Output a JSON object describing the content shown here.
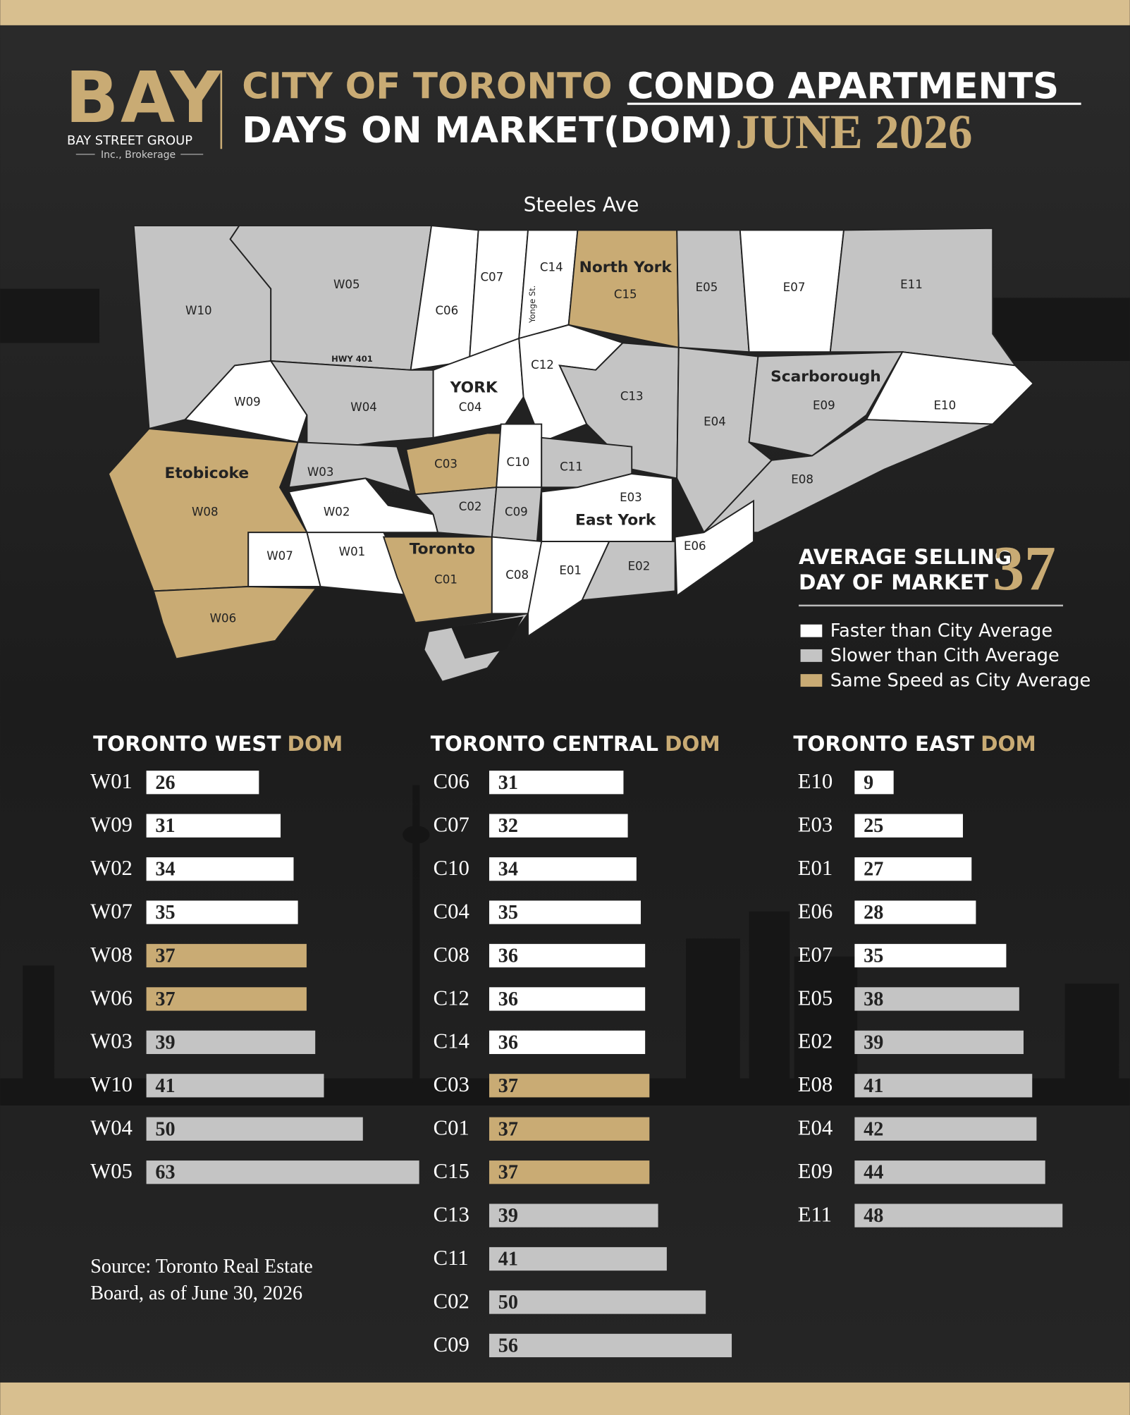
{
  "header": {
    "logo": "BAY",
    "company": "BAY STREET GROUP",
    "company_sub": "Inc., Brokerage",
    "title_line1_a": "CITY OF TORONTO",
    "title_line1_b": "CONDO APARTMENTS",
    "title_line2": "DAYS ON MARKET(DOM)",
    "date": "JUNE 2026"
  },
  "map": {
    "street_labels": [
      "Steeles Ave",
      "HWY 401",
      "Yonge St."
    ],
    "area_labels": [
      "North York",
      "YORK",
      "Scarborough",
      "Etobicoke",
      "East York",
      "Toronto"
    ],
    "regions": [
      {
        "code": "W10",
        "color": "#c4c4c4"
      },
      {
        "code": "W05",
        "color": "#c4c4c4"
      },
      {
        "code": "C06",
        "color": "#ffffff"
      },
      {
        "code": "C07",
        "color": "#ffffff"
      },
      {
        "code": "C14",
        "color": "#ffffff"
      },
      {
        "code": "C15",
        "color": "#c9ab74"
      },
      {
        "code": "E05",
        "color": "#c4c4c4"
      },
      {
        "code": "E07",
        "color": "#ffffff"
      },
      {
        "code": "E11",
        "color": "#c4c4c4"
      },
      {
        "code": "W09",
        "color": "#ffffff"
      },
      {
        "code": "W04",
        "color": "#c4c4c4"
      },
      {
        "code": "C04",
        "color": "#ffffff"
      },
      {
        "code": "C12",
        "color": "#ffffff"
      },
      {
        "code": "C13",
        "color": "#c4c4c4"
      },
      {
        "code": "E04",
        "color": "#c4c4c4"
      },
      {
        "code": "E09",
        "color": "#c4c4c4"
      },
      {
        "code": "E10",
        "color": "#ffffff"
      },
      {
        "code": "E08",
        "color": "#c4c4c4"
      },
      {
        "code": "W08",
        "color": "#c9ab74"
      },
      {
        "code": "W03",
        "color": "#c4c4c4"
      },
      {
        "code": "C03",
        "color": "#c9ab74"
      },
      {
        "code": "C10",
        "color": "#ffffff"
      },
      {
        "code": "C11",
        "color": "#c4c4c4"
      },
      {
        "code": "W02",
        "color": "#ffffff"
      },
      {
        "code": "C02",
        "color": "#c4c4c4"
      },
      {
        "code": "C09",
        "color": "#c4c4c4"
      },
      {
        "code": "E03",
        "color": "#ffffff"
      },
      {
        "code": "W07",
        "color": "#ffffff"
      },
      {
        "code": "W01",
        "color": "#ffffff"
      },
      {
        "code": "C01",
        "color": "#c9ab74"
      },
      {
        "code": "C08",
        "color": "#ffffff"
      },
      {
        "code": "E01",
        "color": "#ffffff"
      },
      {
        "code": "E02",
        "color": "#c4c4c4"
      },
      {
        "code": "E06",
        "color": "#ffffff"
      },
      {
        "code": "W06",
        "color": "#c9ab74"
      }
    ]
  },
  "legend": {
    "heading_line1": "AVERAGE SELLING",
    "heading_line2": "DAY OF MARKET",
    "average": 37,
    "items": [
      {
        "label": "Faster than City Average",
        "color": "#ffffff"
      },
      {
        "label": "Slower than Cith Average",
        "color": "#c4c4c4"
      },
      {
        "label": "Same Speed as City Average",
        "color": "#c9ab74"
      }
    ]
  },
  "source": [
    "Source: Toronto Real Estate",
    "Board, as of June 30, 2026"
  ],
  "chart_data": [
    {
      "type": "bar",
      "title": [
        "TORONTO WEST",
        "DOM"
      ],
      "categories": [
        "W01",
        "W09",
        "W02",
        "W07",
        "W08",
        "W06",
        "W03",
        "W10",
        "W04",
        "W05"
      ],
      "values": [
        26,
        31,
        34,
        35,
        37,
        37,
        39,
        41,
        50,
        63
      ],
      "colors": [
        "#ffffff",
        "#ffffff",
        "#ffffff",
        "#ffffff",
        "#c9ab74",
        "#c9ab74",
        "#c4c4c4",
        "#c4c4c4",
        "#c4c4c4",
        "#c4c4c4"
      ]
    },
    {
      "type": "bar",
      "title": [
        "TORONTO CENTRAL",
        "DOM"
      ],
      "categories": [
        "C06",
        "C07",
        "C10",
        "C04",
        "C08",
        "C12",
        "C14",
        "C03",
        "C01",
        "C15",
        "C13",
        "C11",
        "C02",
        "C09"
      ],
      "values": [
        31,
        32,
        34,
        35,
        36,
        36,
        36,
        37,
        37,
        37,
        39,
        41,
        50,
        56
      ],
      "colors": [
        "#ffffff",
        "#ffffff",
        "#ffffff",
        "#ffffff",
        "#ffffff",
        "#ffffff",
        "#ffffff",
        "#c9ab74",
        "#c9ab74",
        "#c9ab74",
        "#c4c4c4",
        "#c4c4c4",
        "#c4c4c4",
        "#c4c4c4"
      ]
    },
    {
      "type": "bar",
      "title": [
        "TORONTO EAST",
        "DOM"
      ],
      "categories": [
        "E10",
        "E03",
        "E01",
        "E06",
        "E07",
        "E05",
        "E02",
        "E08",
        "E04",
        "E09",
        "E11"
      ],
      "values": [
        9,
        25,
        27,
        28,
        35,
        38,
        39,
        41,
        42,
        44,
        48
      ],
      "colors": [
        "#ffffff",
        "#ffffff",
        "#ffffff",
        "#ffffff",
        "#ffffff",
        "#c4c4c4",
        "#c4c4c4",
        "#c4c4c4",
        "#c4c4c4",
        "#c4c4c4",
        "#c4c4c4"
      ]
    }
  ]
}
